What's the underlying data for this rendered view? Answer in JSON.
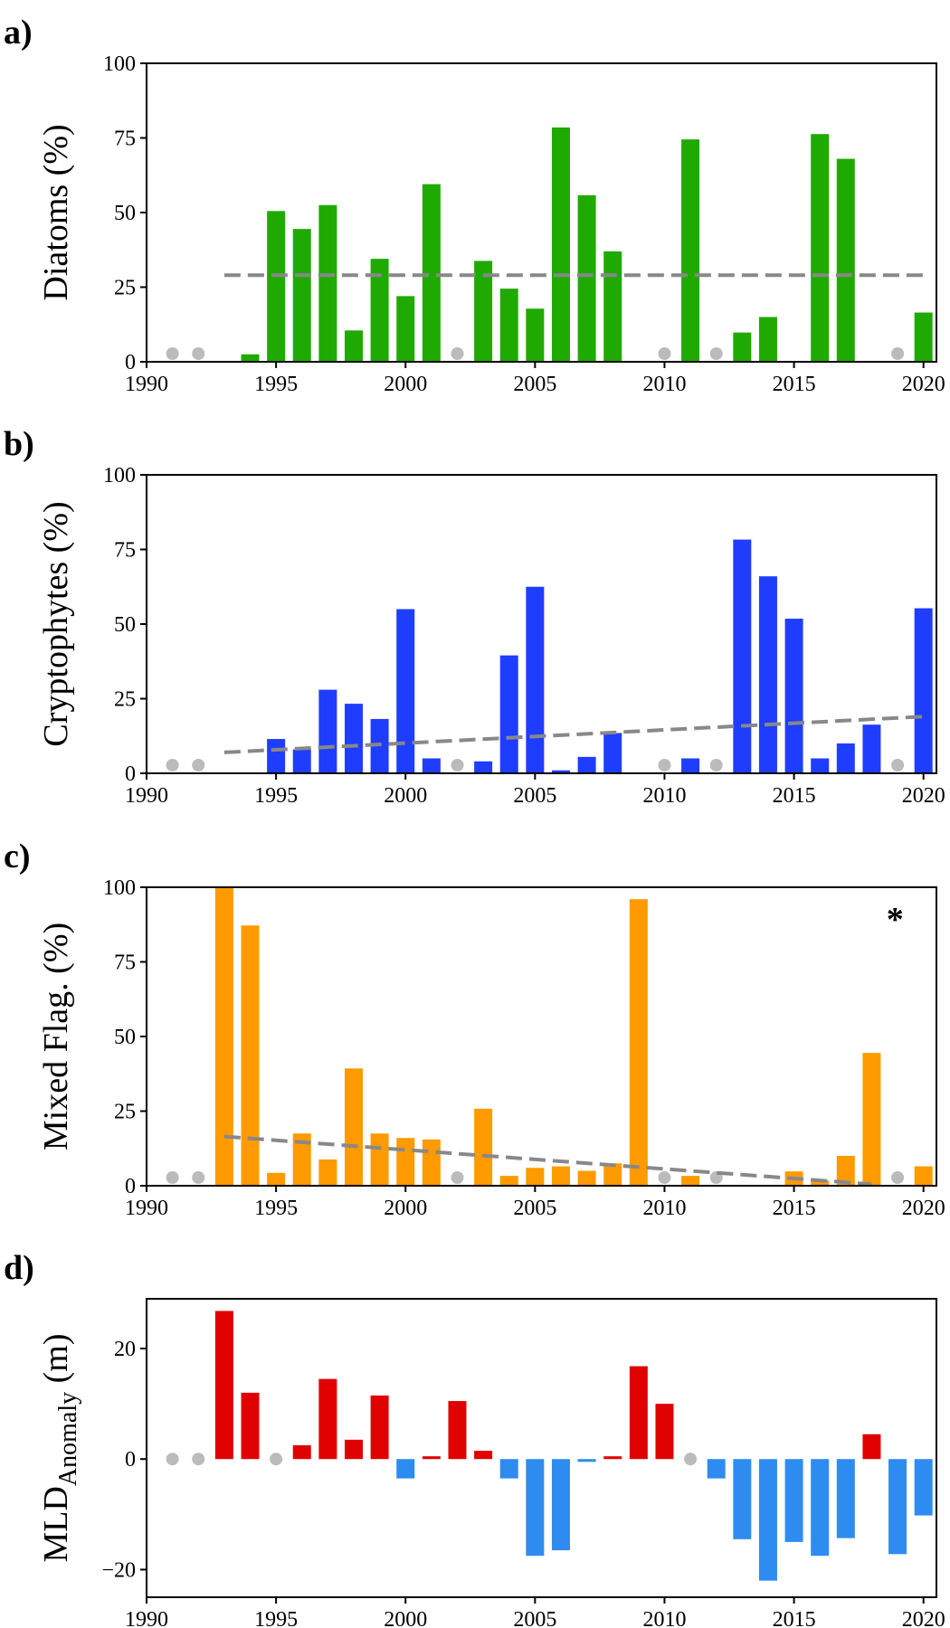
{
  "colors": {
    "diatoms": "#1faa00",
    "cryptophytes": "#1f3dff",
    "mixed_flag": "#ff9a00",
    "mld_positive": "#e00000",
    "mld_negative": "#2e8cf0",
    "missing_marker": "#bbbbbb",
    "trend": "#888888"
  },
  "chart_data": [
    {
      "type": "bar",
      "panel_label": "a)",
      "ylabel": "Diatoms (%)",
      "ylim": [
        0,
        100
      ],
      "yticks": [
        0,
        25,
        50,
        75,
        100
      ],
      "xlim": [
        1990,
        2020.5
      ],
      "xticks": [
        1990,
        1995,
        2000,
        2005,
        2010,
        2015,
        2020
      ],
      "x": [
        1994,
        1995,
        1996,
        1997,
        1998,
        1999,
        2000,
        2001,
        2003,
        2004,
        2005,
        2006,
        2007,
        2008,
        2011,
        2013,
        2014,
        2016,
        2017,
        2020
      ],
      "values": [
        2.5,
        50.5,
        44.5,
        52.5,
        10.5,
        34.5,
        22,
        59.5,
        33.8,
        24.5,
        17.8,
        78.5,
        55.8,
        37,
        74.5,
        9.8,
        15,
        76.3,
        68,
        16.5
      ],
      "missing_years": [
        1991,
        1992,
        2002,
        2010,
        2012,
        2019
      ],
      "trend": {
        "x": [
          1993,
          2020
        ],
        "y": [
          29,
          29
        ]
      },
      "annotation": ""
    },
    {
      "type": "bar",
      "panel_label": "b)",
      "ylabel": "Cryptophytes (%)",
      "ylim": [
        0,
        100
      ],
      "yticks": [
        0,
        25,
        50,
        75,
        100
      ],
      "xlim": [
        1990,
        2020.5
      ],
      "xticks": [
        1990,
        1995,
        2000,
        2005,
        2010,
        2015,
        2020
      ],
      "x": [
        1995,
        1996,
        1997,
        1998,
        1999,
        2000,
        2001,
        2003,
        2004,
        2005,
        2006,
        2007,
        2008,
        2011,
        2013,
        2014,
        2015,
        2016,
        2017,
        2018,
        2020
      ],
      "values": [
        11.5,
        8,
        28,
        23.3,
        18.2,
        55,
        5,
        4,
        39.5,
        62.5,
        1,
        5.5,
        13.5,
        5,
        78.3,
        66,
        51.8,
        5,
        10,
        16.3,
        55.3
      ],
      "missing_years": [
        1991,
        1992,
        2002,
        2010,
        2012,
        2019
      ],
      "trend": {
        "x": [
          1993,
          2020
        ],
        "y": [
          7,
          19
        ]
      },
      "annotation": ""
    },
    {
      "type": "bar",
      "panel_label": "c)",
      "ylabel": "Mixed Flag. (%)",
      "ylim": [
        0,
        100
      ],
      "yticks": [
        0,
        25,
        50,
        75,
        100
      ],
      "xlim": [
        1990,
        2020.5
      ],
      "xticks": [
        1990,
        1995,
        2000,
        2005,
        2010,
        2015,
        2020
      ],
      "x": [
        1993,
        1994,
        1995,
        1996,
        1997,
        1998,
        1999,
        2000,
        2001,
        2003,
        2004,
        2005,
        2006,
        2007,
        2008,
        2009,
        2011,
        2015,
        2016,
        2017,
        2018,
        2020
      ],
      "values": [
        100,
        87.2,
        4.3,
        17.5,
        8.8,
        39.3,
        17.5,
        16,
        15.5,
        25.8,
        3.3,
        6,
        6.5,
        5,
        7.5,
        96,
        3.3,
        4.8,
        1.8,
        10,
        44.5,
        6.5
      ],
      "missing_years": [
        1991,
        1992,
        2002,
        2010,
        2012,
        2019
      ],
      "trend": {
        "x": [
          1993,
          2018
        ],
        "y": [
          16.5,
          0.5
        ]
      },
      "annotation": "*"
    },
    {
      "type": "bar",
      "panel_label": "d)",
      "ylabel_main": "MLD",
      "ylabel_sub": "Anomaly",
      "ylabel_unit": " (m)",
      "ylim": [
        -25,
        29
      ],
      "yticks": [
        -20,
        0,
        20
      ],
      "ytick_labels": [
        "−20",
        "0",
        "20"
      ],
      "xlim": [
        1990,
        2020.5
      ],
      "xticks": [
        1990,
        1995,
        2000,
        2005,
        2010,
        2015,
        2020
      ],
      "x": [
        1993,
        1994,
        1996,
        1997,
        1998,
        1999,
        2000,
        2001,
        2002,
        2003,
        2004,
        2005,
        2006,
        2007,
        2008,
        2009,
        2010,
        2012,
        2013,
        2014,
        2015,
        2016,
        2017,
        2018,
        2019,
        2020
      ],
      "values": [
        26.8,
        12,
        2.5,
        14.5,
        3.5,
        11.5,
        -3.5,
        0.5,
        10.5,
        1.5,
        -3.5,
        -17.5,
        -16.5,
        -0.5,
        0.5,
        16.8,
        10,
        -3.5,
        -14.5,
        -22,
        -15,
        -17.5,
        -14.3,
        4.5,
        -17.2,
        -10.2
      ],
      "missing_years": [
        1991,
        1992,
        1995,
        2011
      ],
      "annotation": ""
    }
  ]
}
